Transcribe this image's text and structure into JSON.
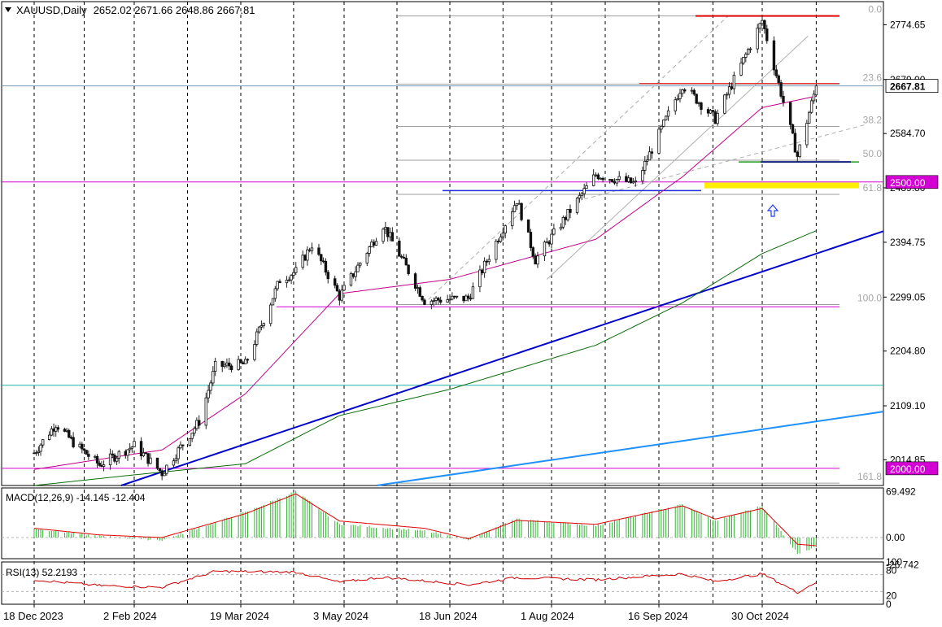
{
  "header": {
    "symbol_label": "XAUUSD,Daily",
    "ohlc": "2652.02 2671.66 2648.86 2667.81"
  },
  "colors": {
    "up_candle": "#1e7a1e",
    "down_candle": "#8b0000",
    "ma_short": "#c0008a",
    "ma_long": "#0a6e0a",
    "trendline_dark": "#0000cd",
    "trendline_light": "#1e90ff",
    "hline_magenta": "#d200d2",
    "hline_teal": "#20b2aa",
    "fib_line": "#9e9e9e",
    "fib_label": "#a6a6a6",
    "red_level": "#e00000",
    "support_zone": "#ffee00",
    "macd_hist": "#32b432",
    "macd_signal": "#e00000",
    "rsi_line": "#cc0000"
  },
  "chart_data": [
    {
      "type": "candlestick",
      "title": "XAUUSD,Daily",
      "last_close": 2667.81,
      "ohlc_last": [
        2652.02,
        2671.66,
        2648.86,
        2667.81
      ],
      "ylim": [
        1970.0,
        2815.0
      ],
      "y_ticks": [
        "2774.65",
        "2679.00",
        "2584.70",
        "2489.80",
        "2394.75",
        "2299.05",
        "2204.80",
        "2109.10",
        "2014.85"
      ],
      "x_ticks": [
        "18 Dec 2023",
        "2 Feb 2024",
        "19 Mar 2024",
        "3 May 2024",
        "18 Jun 2024",
        "1 Aug 2024",
        "16 Sep 2024",
        "30 Oct 2024"
      ],
      "grid": true,
      "close_path": [
        {
          "x": "2023-12-18",
          "y": 2027
        },
        {
          "x": "2023-12-28",
          "y": 2078
        },
        {
          "x": "2024-01-05",
          "y": 2045
        },
        {
          "x": "2024-01-17",
          "y": 2006
        },
        {
          "x": "2024-02-02",
          "y": 2040
        },
        {
          "x": "2024-02-14",
          "y": 1992
        },
        {
          "x": "2024-03-01",
          "y": 2082
        },
        {
          "x": "2024-03-08",
          "y": 2178
        },
        {
          "x": "2024-03-21",
          "y": 2182
        },
        {
          "x": "2024-04-05",
          "y": 2329
        },
        {
          "x": "2024-04-12",
          "y": 2344
        },
        {
          "x": "2024-04-19",
          "y": 2391
        },
        {
          "x": "2024-05-01",
          "y": 2300
        },
        {
          "x": "2024-05-20",
          "y": 2425
        },
        {
          "x": "2024-06-07",
          "y": 2293
        },
        {
          "x": "2024-06-26",
          "y": 2297
        },
        {
          "x": "2024-07-17",
          "y": 2469
        },
        {
          "x": "2024-07-25",
          "y": 2364
        },
        {
          "x": "2024-08-20",
          "y": 2513
        },
        {
          "x": "2024-09-06",
          "y": 2497
        },
        {
          "x": "2024-09-26",
          "y": 2670
        },
        {
          "x": "2024-10-10",
          "y": 2610
        },
        {
          "x": "2024-10-30",
          "y": 2782
        },
        {
          "x": "2024-11-14",
          "y": 2545
        },
        {
          "x": "2024-11-22",
          "y": 2667.81
        }
      ],
      "moving_averages": [
        {
          "name": "short",
          "points": [
            {
              "x": "2023-12-18",
              "y": 1998
            },
            {
              "x": "2024-02-14",
              "y": 2032
            },
            {
              "x": "2024-03-21",
              "y": 2130
            },
            {
              "x": "2024-05-01",
              "y": 2305
            },
            {
              "x": "2024-06-18",
              "y": 2330
            },
            {
              "x": "2024-08-20",
              "y": 2400
            },
            {
              "x": "2024-09-26",
              "y": 2509
            },
            {
              "x": "2024-10-30",
              "y": 2630
            },
            {
              "x": "2024-11-22",
              "y": 2650
            }
          ]
        },
        {
          "name": "long",
          "points": [
            {
              "x": "2023-12-18",
              "y": 1970
            },
            {
              "x": "2024-03-21",
              "y": 2008
            },
            {
              "x": "2024-05-01",
              "y": 2092
            },
            {
              "x": "2024-06-18",
              "y": 2138
            },
            {
              "x": "2024-08-20",
              "y": 2215
            },
            {
              "x": "2024-09-26",
              "y": 2289
            },
            {
              "x": "2024-10-30",
              "y": 2375
            },
            {
              "x": "2024-11-22",
              "y": 2415
            }
          ]
        }
      ],
      "horizontal_levels": [
        {
          "price": 2500.0,
          "label": "2500.00"
        },
        {
          "price": 2000.0,
          "label": "2000.00"
        },
        {
          "price": 2145.0,
          "label": ""
        }
      ],
      "fibonacci": {
        "high": 2790.0,
        "low": 2286.0,
        "levels": [
          {
            "label": "0.0",
            "price": 2790.0
          },
          {
            "label": "23.6",
            "price": 2671.0
          },
          {
            "label": "38.2",
            "price": 2597.0
          },
          {
            "label": "50.0",
            "price": 2538.0
          },
          {
            "label": "61.8",
            "price": 2478.5
          },
          {
            "label": "100.0",
            "price": 2286.0
          },
          {
            "label": "161.8",
            "price": 1974.0
          }
        ]
      },
      "support_zone": {
        "from": 2489.0,
        "to": 2499.0
      }
    },
    {
      "type": "line",
      "title": "MACD(12,26,9) -14.145 -12.404",
      "indicator": "MACD",
      "params": [
        12,
        26,
        9
      ],
      "main": -14.145,
      "signal": -12.404,
      "ylim": [
        -32,
        75
      ],
      "y_ticks": [
        "69.492",
        "0.00",
        "0.0",
        "-26.742"
      ],
      "histogram_path": [
        {
          "x": "2023-12-18",
          "y": 14
        },
        {
          "x": "2024-01-17",
          "y": 2
        },
        {
          "x": "2024-02-14",
          "y": -4
        },
        {
          "x": "2024-03-21",
          "y": 38
        },
        {
          "x": "2024-04-12",
          "y": 70
        },
        {
          "x": "2024-05-01",
          "y": 20
        },
        {
          "x": "2024-06-07",
          "y": 10
        },
        {
          "x": "2024-06-26",
          "y": -3
        },
        {
          "x": "2024-07-17",
          "y": 28
        },
        {
          "x": "2024-08-20",
          "y": 18
        },
        {
          "x": "2024-09-26",
          "y": 50
        },
        {
          "x": "2024-10-10",
          "y": 25
        },
        {
          "x": "2024-10-30",
          "y": 48
        },
        {
          "x": "2024-11-14",
          "y": -24
        },
        {
          "x": "2024-11-22",
          "y": -14.145
        }
      ],
      "signal_path": [
        {
          "x": "2023-12-18",
          "y": 14
        },
        {
          "x": "2024-01-17",
          "y": 4
        },
        {
          "x": "2024-02-14",
          "y": 0
        },
        {
          "x": "2024-03-21",
          "y": 36
        },
        {
          "x": "2024-04-12",
          "y": 66
        },
        {
          "x": "2024-05-01",
          "y": 25
        },
        {
          "x": "2024-06-07",
          "y": 14
        },
        {
          "x": "2024-06-26",
          "y": -2
        },
        {
          "x": "2024-07-17",
          "y": 26
        },
        {
          "x": "2024-08-20",
          "y": 20
        },
        {
          "x": "2024-09-26",
          "y": 48
        },
        {
          "x": "2024-10-10",
          "y": 28
        },
        {
          "x": "2024-10-30",
          "y": 44
        },
        {
          "x": "2024-11-14",
          "y": -10
        },
        {
          "x": "2024-11-22",
          "y": -12.404
        }
      ]
    },
    {
      "type": "line",
      "title": "RSI(13) 52.2193",
      "indicator": "RSI",
      "params": [
        13
      ],
      "value": 52.2193,
      "ylim": [
        0,
        100
      ],
      "levels": [
        30,
        70
      ],
      "y_ticks": [
        "100",
        "80",
        "20",
        "0"
      ],
      "series_path": [
        {
          "x": "2023-12-18",
          "y": 58
        },
        {
          "x": "2024-01-17",
          "y": 44
        },
        {
          "x": "2024-02-14",
          "y": 40
        },
        {
          "x": "2024-03-08",
          "y": 78
        },
        {
          "x": "2024-04-12",
          "y": 76
        },
        {
          "x": "2024-05-01",
          "y": 52
        },
        {
          "x": "2024-05-20",
          "y": 64
        },
        {
          "x": "2024-06-26",
          "y": 46
        },
        {
          "x": "2024-07-17",
          "y": 63
        },
        {
          "x": "2024-08-20",
          "y": 58
        },
        {
          "x": "2024-09-26",
          "y": 72
        },
        {
          "x": "2024-10-10",
          "y": 54
        },
        {
          "x": "2024-10-30",
          "y": 72
        },
        {
          "x": "2024-11-14",
          "y": 28
        },
        {
          "x": "2024-11-22",
          "y": 52.2193
        }
      ]
    }
  ]
}
